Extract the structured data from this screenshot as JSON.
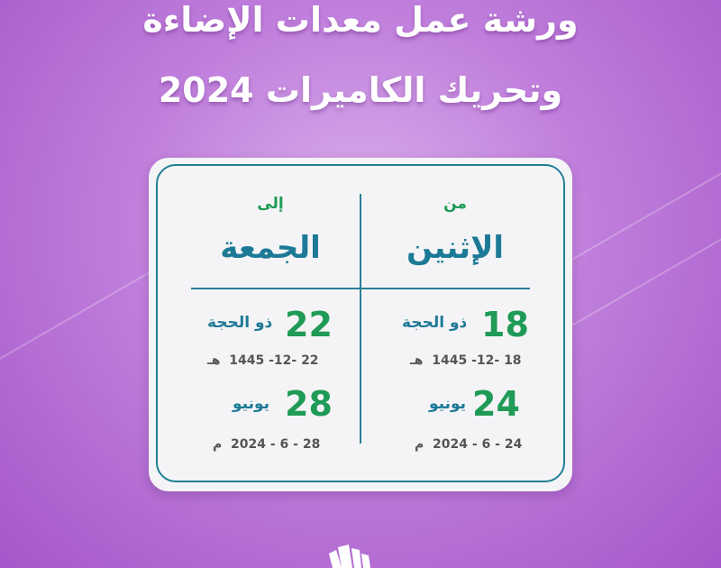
{
  "title": {
    "line1": "ورشة عمل معدات الإضاءة",
    "line2": "وتحريك الكاميرات 2024"
  },
  "from": {
    "label": "من",
    "day": "الإثنين",
    "hijri": {
      "day": "18",
      "month": "ذو الحجة",
      "date": "1445 -12- 18",
      "suffix": "هـ"
    },
    "gregorian": {
      "day": "24",
      "month": "يونيو",
      "date": "2024 - 6 - 24",
      "suffix": "م"
    }
  },
  "to": {
    "label": "إلى",
    "day": "الجمعة",
    "hijri": {
      "day": "22",
      "month": "ذو الحجة",
      "date": "1445 -12- 22",
      "suffix": "هـ"
    },
    "gregorian": {
      "day": "28",
      "month": "يونيو",
      "date": "2024 - 6 - 28",
      "suffix": "م"
    }
  },
  "colors": {
    "background": "#c07fdc",
    "accent_green": "#1f9b57",
    "accent_teal": "#1d7a96"
  }
}
